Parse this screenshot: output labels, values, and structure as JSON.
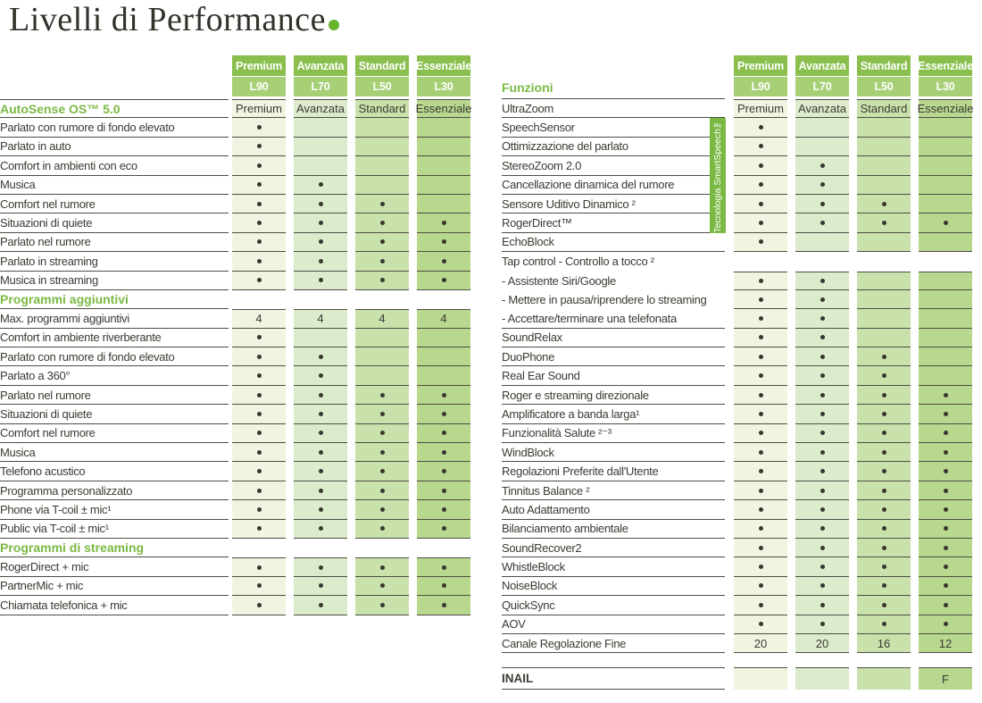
{
  "title": {
    "text": "Livelli di Performance"
  },
  "colors": {
    "accent_green": "#7cb944",
    "header_top_green": "#8abf4e",
    "header_sub_green": "#a7cf76",
    "column_greens": [
      "#eff5e1",
      "#ddebcd",
      "#c9e2ab",
      "#b8d78f"
    ],
    "border_dark": "#4e4d44",
    "text_dark": "#3b3a32",
    "title_dot_green": "#67b32e"
  },
  "tiers": [
    {
      "name": "Premium",
      "model": "L90"
    },
    {
      "name": "Avanzata",
      "model": "L70"
    },
    {
      "name": "Standard",
      "model": "L50"
    },
    {
      "name": "Essenziale",
      "model": "L30"
    }
  ],
  "left_table": {
    "rows": [
      {
        "section": true,
        "label_top": true,
        "cell_top": true,
        "label": "AutoSense OS™ 5.0",
        "cells": [
          "Premium",
          "Avanzata",
          "Standard",
          "Essenziale"
        ]
      },
      {
        "label": "Parlato con rumore di fondo elevato",
        "cells": [
          "dot",
          "",
          "",
          ""
        ]
      },
      {
        "label": "Parlato in auto",
        "cells": [
          "dot",
          "",
          "",
          ""
        ]
      },
      {
        "label": "Comfort in ambienti con eco",
        "cells": [
          "dot",
          "",
          "",
          ""
        ]
      },
      {
        "label": "Musica",
        "cells": [
          "dot",
          "dot",
          "",
          ""
        ]
      },
      {
        "label": "Comfort nel rumore",
        "cells": [
          "dot",
          "dot",
          "dot",
          ""
        ]
      },
      {
        "label": "Situazioni di quiete",
        "cells": [
          "dot",
          "dot",
          "dot",
          "dot"
        ]
      },
      {
        "label": "Parlato nel rumore",
        "cells": [
          "dot",
          "dot",
          "dot",
          "dot"
        ]
      },
      {
        "label": "Parlato in streaming",
        "cells": [
          "dot",
          "dot",
          "dot",
          "dot"
        ]
      },
      {
        "label": "Musica in streaming",
        "cells": [
          "dot",
          "dot",
          "dot",
          "dot"
        ]
      },
      {
        "section": true,
        "label": "Programmi aggiuntivi",
        "cells": [
          null,
          null,
          null,
          null
        ]
      },
      {
        "cell_top": true,
        "label": "Max. programmi aggiuntivi",
        "cells": [
          "4",
          "4",
          "4",
          "4"
        ]
      },
      {
        "label": "Comfort in ambiente riverberante",
        "cells": [
          "dot",
          "",
          "",
          ""
        ]
      },
      {
        "label": "Parlato con rumore di fondo elevato",
        "cells": [
          "dot",
          "dot",
          "",
          ""
        ]
      },
      {
        "label": "Parlato a 360°",
        "cells": [
          "dot",
          "dot",
          "",
          ""
        ]
      },
      {
        "label": "Parlato nel rumore",
        "cells": [
          "dot",
          "dot",
          "dot",
          "dot"
        ]
      },
      {
        "label": "Situazioni di quiete",
        "cells": [
          "dot",
          "dot",
          "dot",
          "dot"
        ]
      },
      {
        "label": "Comfort nel rumore",
        "cells": [
          "dot",
          "dot",
          "dot",
          "dot"
        ]
      },
      {
        "label": "Musica",
        "cells": [
          "dot",
          "dot",
          "dot",
          "dot"
        ]
      },
      {
        "label": "Telefono acustico",
        "cells": [
          "dot",
          "dot",
          "dot",
          "dot"
        ]
      },
      {
        "label": "Programma personalizzato",
        "cells": [
          "dot",
          "dot",
          "dot",
          "dot"
        ]
      },
      {
        "label": "Phone via T-coil ± mic¹",
        "cells": [
          "dot",
          "dot",
          "dot",
          "dot"
        ]
      },
      {
        "label": "Public via T-coil ± mic¹",
        "cells": [
          "dot",
          "dot",
          "dot",
          "dot"
        ]
      },
      {
        "section": true,
        "label": "Programmi di streaming",
        "cells": [
          null,
          null,
          null,
          null
        ]
      },
      {
        "cell_top": true,
        "label": "RogerDirect + mic",
        "cells": [
          "dot",
          "dot",
          "dot",
          "dot"
        ]
      },
      {
        "label": "PartnerMic + mic",
        "cells": [
          "dot",
          "dot",
          "dot",
          "dot"
        ]
      },
      {
        "label": "Chiamata telefonica + mic",
        "cells": [
          "dot",
          "dot",
          "dot",
          "dot"
        ]
      }
    ]
  },
  "right_table": {
    "funzioni_label": "Funzioni",
    "banner_text": "Tecnologia SmartSpeech™",
    "rows": [
      {
        "cell_top": true,
        "label": "UltraZoom",
        "cells": [
          "Premium",
          "Avanzata",
          "Standard",
          "Essenziale"
        ]
      },
      {
        "label": "SpeechSensor",
        "cells": [
          "dot",
          "",
          "",
          ""
        ]
      },
      {
        "label": "Ottimizzazione del parlato",
        "cells": [
          "dot",
          "",
          "",
          ""
        ]
      },
      {
        "label": "StereoZoom 2.0",
        "cells": [
          "dot",
          "dot",
          "",
          ""
        ]
      },
      {
        "label": "Cancellazione dinamica del rumore",
        "cells": [
          "dot",
          "dot",
          "",
          ""
        ]
      },
      {
        "label": "Sensore Uditivo Dinamico ²",
        "cells": [
          "dot",
          "dot",
          "dot",
          ""
        ]
      },
      {
        "label": "RogerDirect™",
        "cells": [
          "dot",
          "dot",
          "dot",
          "dot"
        ]
      },
      {
        "label": "EchoBlock",
        "cells": [
          "dot",
          "",
          "",
          ""
        ]
      },
      {
        "no_border": true,
        "label": "Tap control - Controllo a tocco ²",
        "cells": [
          null,
          null,
          null,
          null
        ]
      },
      {
        "no_border": true,
        "cell_top": true,
        "label": "- Assistente Siri/Google",
        "cells": [
          "dot",
          "dot",
          "",
          ""
        ]
      },
      {
        "no_border": true,
        "label": "- Mettere in pausa/riprendere lo streaming",
        "cells": [
          "dot",
          "dot",
          "",
          ""
        ]
      },
      {
        "label": "- Accettare/terminare una telefonata",
        "cells": [
          "dot",
          "dot",
          "",
          ""
        ]
      },
      {
        "label": "SoundRelax",
        "cells": [
          "dot",
          "dot",
          "",
          ""
        ]
      },
      {
        "label": "DuoPhone",
        "cells": [
          "dot",
          "dot",
          "dot",
          ""
        ]
      },
      {
        "label": "Real Ear Sound",
        "cells": [
          "dot",
          "dot",
          "dot",
          ""
        ]
      },
      {
        "label": "Roger e streaming direzionale",
        "cells": [
          "dot",
          "dot",
          "dot",
          "dot"
        ]
      },
      {
        "label": "Amplificatore a banda larga¹",
        "cells": [
          "dot",
          "dot",
          "dot",
          "dot"
        ]
      },
      {
        "label": "Funzionalità Salute ²⁻³",
        "cells": [
          "dot",
          "dot",
          "dot",
          "dot"
        ]
      },
      {
        "label": "WindBlock",
        "cells": [
          "dot",
          "dot",
          "dot",
          "dot"
        ]
      },
      {
        "label": "Regolazioni Preferite dall'Utente",
        "cells": [
          "dot",
          "dot",
          "dot",
          "dot"
        ]
      },
      {
        "label": "Tinnitus Balance ²",
        "cells": [
          "dot",
          "dot",
          "dot",
          "dot"
        ]
      },
      {
        "label": "Auto Adattamento",
        "cells": [
          "dot",
          "dot",
          "dot",
          "dot"
        ]
      },
      {
        "label": "Bilanciamento ambientale",
        "cells": [
          "dot",
          "dot",
          "dot",
          "dot"
        ]
      },
      {
        "label": "SoundRecover2",
        "cells": [
          "dot",
          "dot",
          "dot",
          "dot"
        ]
      },
      {
        "label": "WhistleBlock",
        "cells": [
          "dot",
          "dot",
          "dot",
          "dot"
        ]
      },
      {
        "label": "NoiseBlock",
        "cells": [
          "dot",
          "dot",
          "dot",
          "dot"
        ]
      },
      {
        "label": "QuickSync",
        "cells": [
          "dot",
          "dot",
          "dot",
          "dot"
        ]
      },
      {
        "label": "AOV",
        "cells": [
          "dot",
          "dot",
          "dot",
          "dot"
        ]
      },
      {
        "label": "Canale Regolazione Fine",
        "cells": [
          "20",
          "20",
          "16",
          "12"
        ]
      }
    ],
    "inail": {
      "label": "INAIL",
      "cells": [
        "",
        "",
        "",
        "F"
      ]
    }
  }
}
